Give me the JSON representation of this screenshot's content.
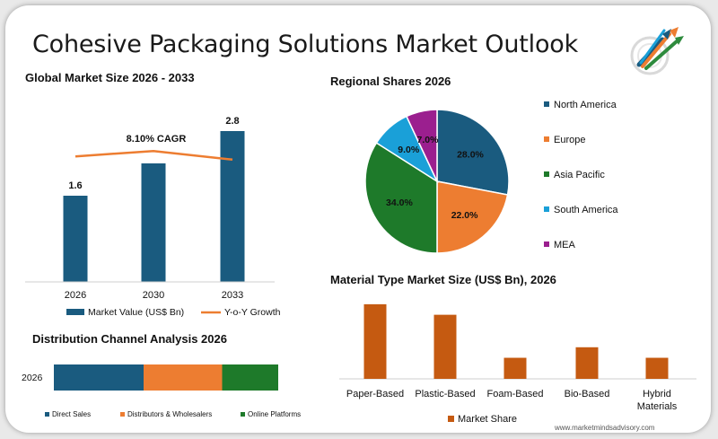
{
  "page": {
    "title": "Cohesive Packaging Solutions Market Outlook",
    "website": "www.marketmindsadvisory.com"
  },
  "colors": {
    "navy": "#1a5b7f",
    "orange": "#ed7d31",
    "green": "#1e7a2a",
    "light_blue": "#1aa0d8",
    "purple": "#9b1f8f",
    "rust": "#c55a11"
  },
  "chart_data": [
    {
      "id": "global",
      "type": "bar",
      "title": "Global Market Size 2026 - 2033",
      "categories": [
        "2026",
        "2030",
        "2033"
      ],
      "series": [
        {
          "name": "Market Value (US$ Bn)",
          "values": [
            1.6,
            2.2,
            2.8
          ],
          "data_labels": [
            "1.6",
            "",
            "2.8"
          ]
        },
        {
          "name": "Y-o-Y Growth",
          "type": "line",
          "values": [
            2.33,
            2.43,
            2.27
          ]
        }
      ],
      "annotation": "8.10% CAGR",
      "ylim": [
        0,
        3.0
      ]
    },
    {
      "id": "regional",
      "type": "pie",
      "title": "Regional Shares 2026",
      "labels": [
        "North America",
        "Europe",
        "Asia Pacific",
        "South America",
        "MEA"
      ],
      "values": [
        28.0,
        22.0,
        34.0,
        9.0,
        7.0
      ],
      "value_labels": [
        "28.0%",
        "22.0%",
        "34.0%",
        "9.0%",
        "7.0%"
      ],
      "colors": [
        "#1a5b7f",
        "#ed7d31",
        "#1e7a2a",
        "#1aa0d8",
        "#9b1f8f"
      ]
    },
    {
      "id": "material",
      "type": "bar",
      "title": "Material Type Market Size (US$ Bn), 2026",
      "categories": [
        "Paper-Based",
        "Plastic-Based",
        "Foam-Based",
        "Bio-Based",
        "Hybrid Materials"
      ],
      "series": [
        {
          "name": "Market Share",
          "values": [
            0.85,
            0.73,
            0.24,
            0.36,
            0.24
          ]
        }
      ],
      "ylim": [
        0,
        0.9
      ]
    },
    {
      "id": "distribution",
      "type": "bar",
      "orientation": "horizontal-stacked",
      "title": "Distribution Channel Analysis 2026",
      "categories": [
        "2026"
      ],
      "series": [
        {
          "name": "Direct Sales",
          "values": [
            40
          ]
        },
        {
          "name": "Distributors & Wholesalers",
          "values": [
            35
          ]
        },
        {
          "name": "Online Platforms",
          "values": [
            25
          ]
        }
      ]
    }
  ]
}
